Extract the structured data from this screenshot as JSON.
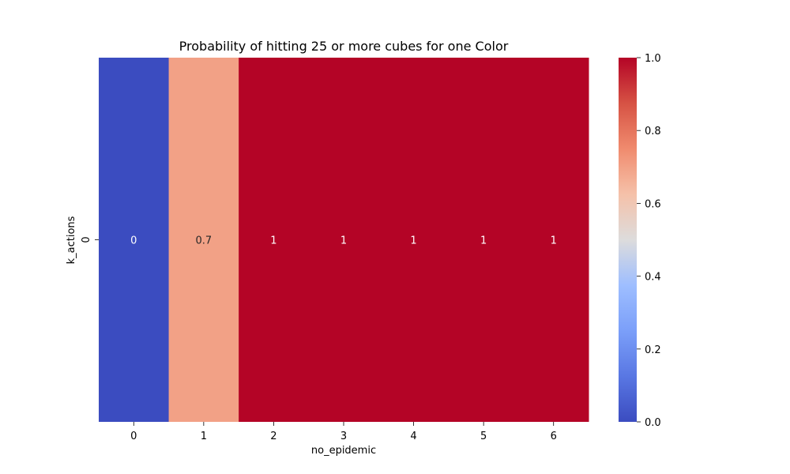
{
  "chart_data": {
    "type": "heatmap",
    "title": "Probability of hitting 25 or more cubes for one Color",
    "xlabel": "no_epidemic",
    "ylabel": "k_actions",
    "x_categories": [
      "0",
      "1",
      "2",
      "3",
      "4",
      "5",
      "6"
    ],
    "y_categories": [
      "0"
    ],
    "values": [
      [
        0,
        0.7,
        1,
        1,
        1,
        1,
        1
      ]
    ],
    "cell_labels": [
      [
        "0",
        "0.7",
        "1",
        "1",
        "1",
        "1",
        "1"
      ]
    ],
    "colormap": "coolwarm",
    "vmin": 0,
    "vmax": 1,
    "colorbar_ticks": [
      "0.0",
      "0.2",
      "0.4",
      "0.6",
      "0.8",
      "1.0"
    ],
    "colors": {
      "low": "#3b4cc0",
      "high": "#b40426"
    }
  }
}
